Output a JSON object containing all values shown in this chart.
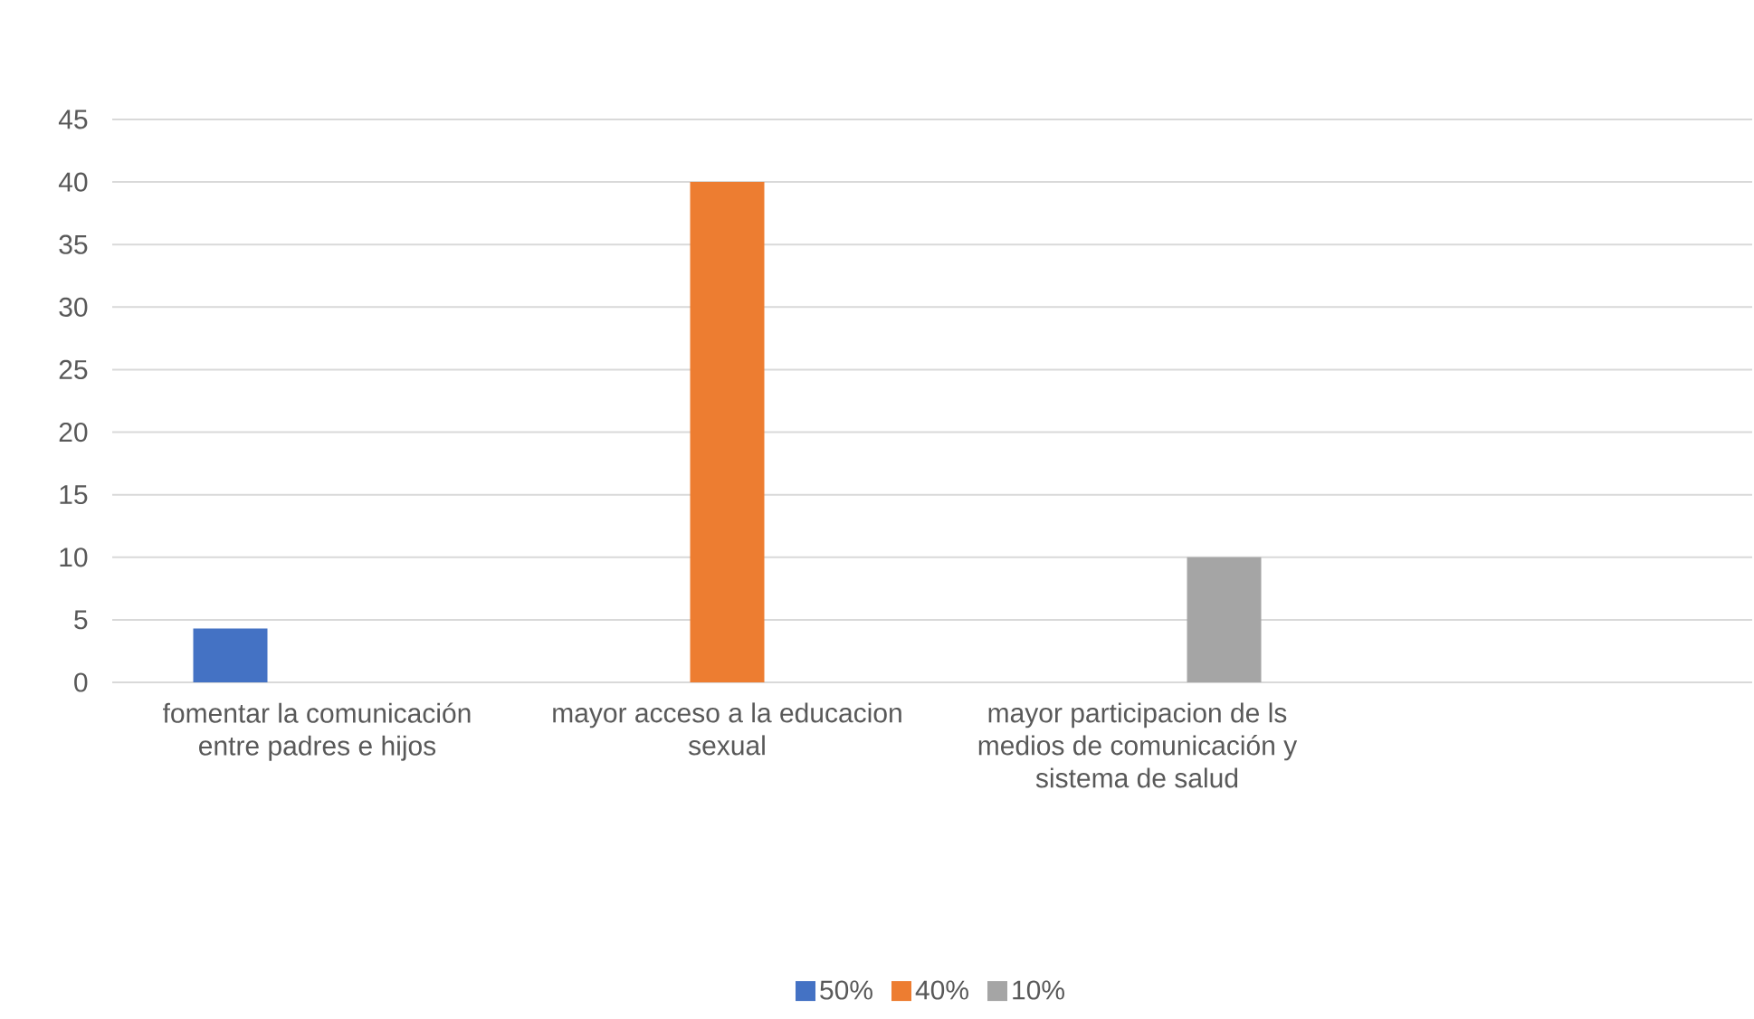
{
  "chart_data": {
    "type": "bar",
    "categories": [
      "fomentar la comunicación entre padres e hijos",
      "mayor acceso a la educacion sexual",
      "mayor participacion de ls medios de comunicación y sistema de salud",
      null
    ],
    "series": [
      {
        "name": "50%",
        "color": "#4472c4",
        "values": [
          4.3,
          null,
          null,
          null
        ]
      },
      {
        "name": "40%",
        "color": "#ed7d31",
        "values": [
          null,
          40,
          null,
          null
        ]
      },
      {
        "name": "10%",
        "color": "#a5a5a5",
        "values": [
          null,
          null,
          10,
          null
        ]
      }
    ],
    "ylim": [
      0,
      45
    ],
    "yticks": [
      0,
      5,
      10,
      15,
      20,
      25,
      30,
      35,
      40,
      45
    ],
    "grid": "y",
    "legend": "bottom"
  }
}
